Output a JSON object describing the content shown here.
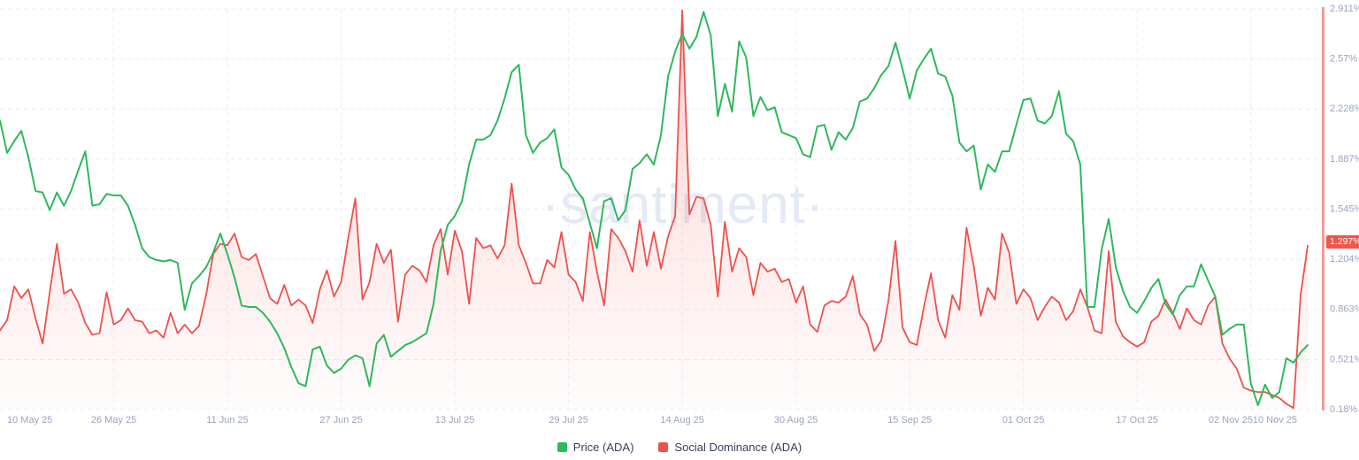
{
  "chart_data": {
    "type": "line",
    "title": "",
    "watermark": "·santiment·",
    "x_start": "10 May 25",
    "x_end": "10 Nov 25",
    "x_unit": "day",
    "n_points": 185,
    "x_ticks": [
      {
        "label": "10 May 25",
        "day": 0
      },
      {
        "label": "26 May 25",
        "day": 16
      },
      {
        "label": "11 Jun 25",
        "day": 32
      },
      {
        "label": "27 Jun 25",
        "day": 48
      },
      {
        "label": "13 Jul 25",
        "day": 64
      },
      {
        "label": "29 Jul 25",
        "day": 80
      },
      {
        "label": "14 Aug 25",
        "day": 96
      },
      {
        "label": "30 Aug 25",
        "day": 112
      },
      {
        "label": "15 Sep 25",
        "day": 128
      },
      {
        "label": "01 Oct 25",
        "day": 144
      },
      {
        "label": "17 Oct 25",
        "day": 160
      },
      {
        "label": "02 Nov 25",
        "day": 176
      },
      {
        "label": "10 Nov 25",
        "day": 184
      }
    ],
    "y_axis": {
      "side": "right",
      "unit": "%",
      "ticks": [
        "2.911%",
        "2.57%",
        "2.228%",
        "1.887%",
        "1.545%",
        "1.204%",
        "0.863%",
        "0.521%",
        "0.18%"
      ],
      "ylim": [
        0.18,
        2.911
      ],
      "label_color": "#9aa3c2",
      "axis_line_color": "#f79a94"
    },
    "grid": {
      "horizontal_dashed": true,
      "vertical_dashed": true,
      "color": "#e9edf7"
    },
    "legend": {
      "position": "bottom-center"
    },
    "series": [
      {
        "name": "Price (ADA)",
        "color": "#2fb85c",
        "axis": "hidden",
        "note": "price axis not shown; values are the line's visual position mapped onto the right-hand % scale",
        "values": [
          2.15,
          1.93,
          2.01,
          2.08,
          1.9,
          1.67,
          1.66,
          1.54,
          1.66,
          1.57,
          1.67,
          1.81,
          1.94,
          1.57,
          1.58,
          1.65,
          1.64,
          1.64,
          1.57,
          1.44,
          1.28,
          1.22,
          1.2,
          1.19,
          1.2,
          1.18,
          0.86,
          1.04,
          1.09,
          1.15,
          1.25,
          1.38,
          1.24,
          1.08,
          0.89,
          0.88,
          0.88,
          0.84,
          0.78,
          0.7,
          0.6,
          0.47,
          0.36,
          0.34,
          0.59,
          0.61,
          0.48,
          0.43,
          0.46,
          0.52,
          0.55,
          0.53,
          0.34,
          0.63,
          0.69,
          0.54,
          0.58,
          0.62,
          0.64,
          0.67,
          0.7,
          0.9,
          1.26,
          1.44,
          1.5,
          1.6,
          1.85,
          2.02,
          2.02,
          2.05,
          2.15,
          2.3,
          2.48,
          2.53,
          2.05,
          1.93,
          2.0,
          2.03,
          2.09,
          1.83,
          1.78,
          1.68,
          1.62,
          1.45,
          1.28,
          1.6,
          1.62,
          1.47,
          1.54,
          1.82,
          1.86,
          1.92,
          1.85,
          2.05,
          2.45,
          2.62,
          2.74,
          2.64,
          2.72,
          2.89,
          2.73,
          2.18,
          2.4,
          2.21,
          2.69,
          2.58,
          2.18,
          2.31,
          2.22,
          2.24,
          2.07,
          2.05,
          2.03,
          1.92,
          1.9,
          2.11,
          2.12,
          1.95,
          2.07,
          2.02,
          2.1,
          2.28,
          2.3,
          2.37,
          2.46,
          2.52,
          2.68,
          2.5,
          2.3,
          2.49,
          2.57,
          2.64,
          2.47,
          2.45,
          2.32,
          2.0,
          1.94,
          1.98,
          1.68,
          1.85,
          1.8,
          1.94,
          1.94,
          2.12,
          2.29,
          2.3,
          2.15,
          2.13,
          2.18,
          2.35,
          2.06,
          2.01,
          1.85,
          0.88,
          0.88,
          1.27,
          1.48,
          1.15,
          0.99,
          0.88,
          0.84,
          0.92,
          1.01,
          1.07,
          0.9,
          0.83,
          0.96,
          1.02,
          1.02,
          1.17,
          1.06,
          0.95,
          0.69,
          0.73,
          0.76,
          0.76,
          0.36,
          0.21,
          0.35,
          0.26,
          0.3,
          0.53,
          0.5,
          0.57,
          0.62
        ]
      },
      {
        "name": "Social Dominance (ADA)",
        "color": "#f0504c",
        "fill": "red-gradient-area",
        "current_value": "1.297%",
        "values": [
          0.72,
          0.79,
          1.02,
          0.94,
          1.0,
          0.8,
          0.63,
          0.98,
          1.31,
          0.97,
          1.0,
          0.91,
          0.77,
          0.69,
          0.7,
          0.98,
          0.76,
          0.79,
          0.87,
          0.79,
          0.78,
          0.7,
          0.72,
          0.67,
          0.84,
          0.7,
          0.76,
          0.7,
          0.75,
          0.96,
          1.24,
          1.31,
          1.3,
          1.38,
          1.22,
          1.2,
          1.24,
          1.09,
          0.94,
          0.9,
          1.03,
          0.89,
          0.93,
          0.89,
          0.77,
          1.0,
          1.13,
          0.95,
          1.05,
          1.35,
          1.62,
          0.93,
          1.05,
          1.31,
          1.18,
          1.27,
          0.78,
          1.1,
          1.16,
          1.13,
          1.05,
          1.3,
          1.41,
          1.1,
          1.4,
          1.26,
          0.9,
          1.35,
          1.28,
          1.3,
          1.21,
          1.3,
          1.72,
          1.3,
          1.18,
          1.04,
          1.04,
          1.2,
          1.15,
          1.39,
          1.1,
          1.05,
          0.92,
          1.39,
          1.12,
          0.89,
          1.41,
          1.35,
          1.26,
          1.12,
          1.47,
          1.16,
          1.39,
          1.14,
          1.36,
          1.5,
          2.9,
          1.51,
          1.63,
          1.62,
          1.44,
          0.95,
          1.46,
          1.12,
          1.28,
          1.22,
          0.96,
          1.18,
          1.12,
          1.14,
          1.05,
          1.07,
          0.91,
          1.02,
          0.76,
          0.71,
          0.89,
          0.92,
          0.91,
          0.95,
          1.09,
          0.83,
          0.76,
          0.58,
          0.65,
          0.92,
          1.33,
          0.74,
          0.64,
          0.62,
          0.88,
          1.11,
          0.79,
          0.67,
          0.96,
          0.86,
          1.42,
          1.16,
          0.82,
          1.01,
          0.93,
          1.38,
          1.25,
          0.9,
          1.0,
          0.94,
          0.79,
          0.88,
          0.95,
          0.91,
          0.79,
          0.85,
          1.0,
          0.88,
          0.72,
          0.7,
          1.26,
          0.78,
          0.68,
          0.64,
          0.61,
          0.64,
          0.78,
          0.82,
          0.93,
          0.84,
          0.73,
          0.87,
          0.79,
          0.76,
          0.89,
          0.95,
          0.63,
          0.53,
          0.46,
          0.33,
          0.31,
          0.3,
          0.3,
          0.28,
          0.26,
          0.22,
          0.19,
          0.96,
          1.297
        ]
      }
    ]
  }
}
